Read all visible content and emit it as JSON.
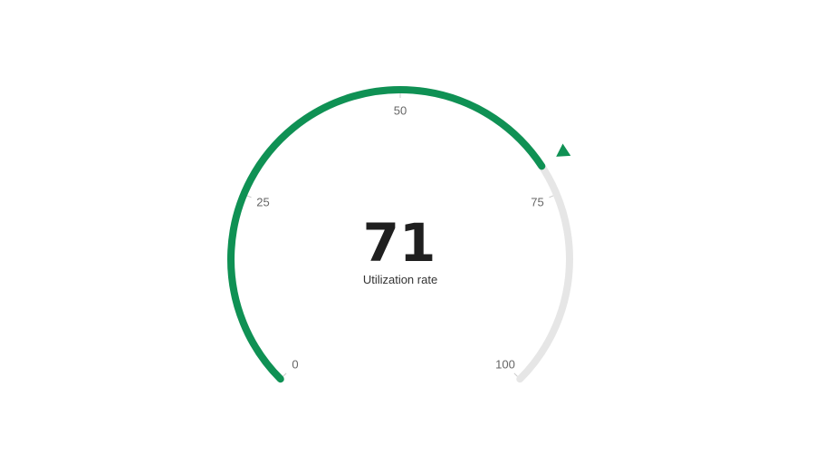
{
  "chart_data": {
    "type": "gauge",
    "value": 71,
    "value_label": "71",
    "caption": "Utilization rate",
    "min": 0,
    "max": 100,
    "ticks": [
      0,
      25,
      50,
      75,
      100
    ],
    "tick_labels": [
      "0",
      "25",
      "50",
      "75",
      "100"
    ],
    "colors": {
      "progress": "#0f9154",
      "track": "#e6e6e6",
      "pointer": "#0f9154",
      "value_text": "#1f1f1f",
      "caption_text": "#333333",
      "tick_label": "#666666",
      "tick_mark": "#cccccc"
    }
  }
}
